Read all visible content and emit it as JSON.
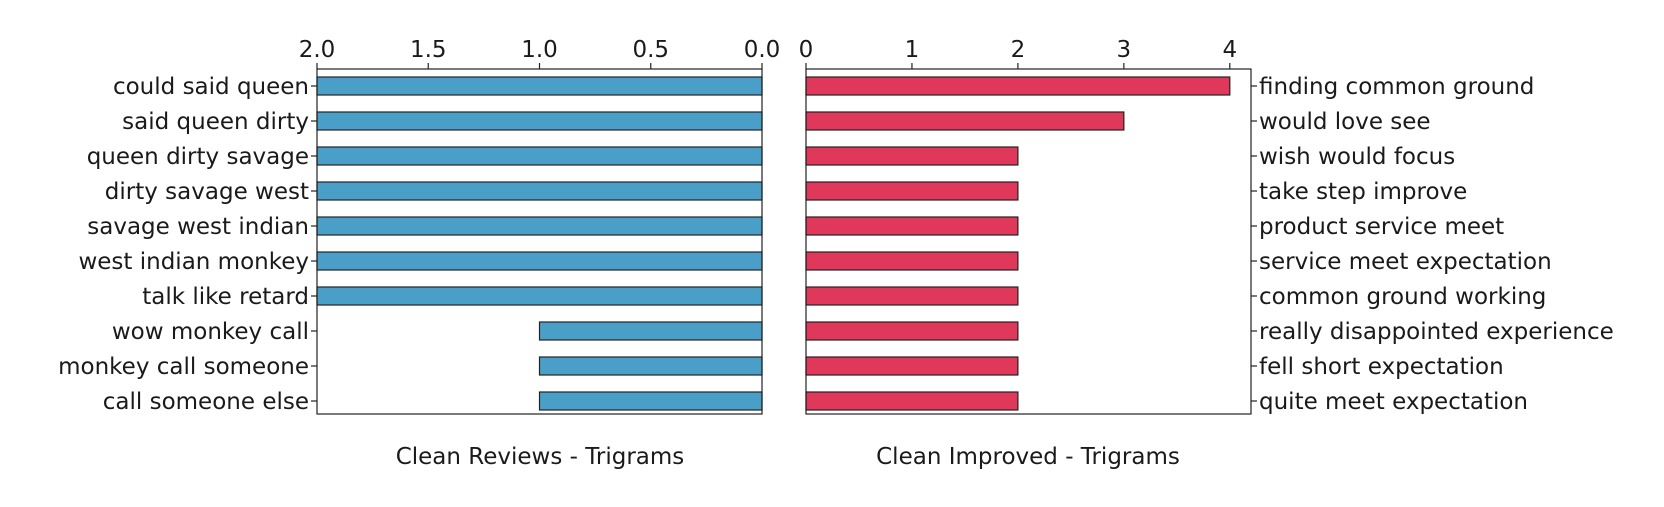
{
  "chart_data": [
    {
      "type": "bar",
      "orientation": "horizontal",
      "direction": "reversed",
      "title": "Clean Reviews - Trigrams",
      "categories": [
        "could said queen",
        "said queen dirty",
        "queen dirty savage",
        "dirty savage west",
        "savage west indian",
        "west indian monkey",
        "talk like retard",
        "wow monkey call",
        "monkey call someone",
        "call someone else"
      ],
      "values": [
        2,
        2,
        2,
        2,
        2,
        2,
        2,
        1,
        1,
        1
      ],
      "xlim": [
        2.0,
        0.0
      ],
      "xticks": [
        "2.0",
        "1.5",
        "1.0",
        "0.5",
        "0.0"
      ],
      "tick_values": [
        2.0,
        1.5,
        1.0,
        0.5,
        0.0
      ],
      "category_axis": "left",
      "value_axis": "top",
      "grid": false,
      "color": "#4a9fc8"
    },
    {
      "type": "bar",
      "orientation": "horizontal",
      "direction": "normal",
      "title": "Clean Improved - Trigrams",
      "categories": [
        "finding common ground",
        "would love see",
        "wish would focus",
        "take step improve",
        "product service meet",
        "service meet expectation",
        "common ground working",
        "really disappointed experience",
        "fell short expectation",
        "quite meet expectation"
      ],
      "values": [
        4,
        3,
        2,
        2,
        2,
        2,
        2,
        2,
        2,
        2
      ],
      "xlim": [
        0,
        4.2
      ],
      "xticks": [
        "0",
        "1",
        "2",
        "3",
        "4"
      ],
      "tick_values": [
        0,
        1,
        2,
        3,
        4
      ],
      "category_axis": "right",
      "value_axis": "top",
      "grid": false,
      "color": "#e0385a"
    }
  ]
}
